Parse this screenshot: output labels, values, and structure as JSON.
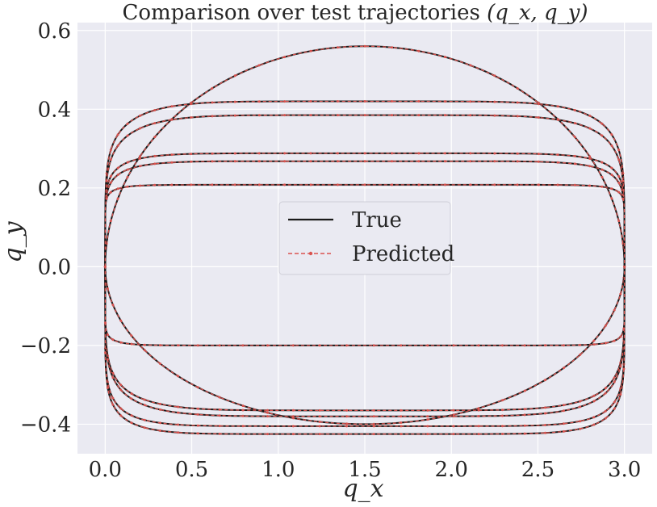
{
  "chart_data": {
    "type": "line",
    "title": "Comparison over test trajectories",
    "title_math": "(q_x, q_y)",
    "xlabel": "q_x",
    "ylabel": "q_y",
    "xlim": [
      -0.16,
      3.16
    ],
    "ylim": [
      -0.475,
      0.62
    ],
    "xticks": [
      "0.0",
      "0.5",
      "1.0",
      "1.5",
      "2.0",
      "2.5",
      "3.0"
    ],
    "xtick_values": [
      0,
      0.5,
      1.0,
      1.5,
      2.0,
      2.5,
      3.0
    ],
    "yticks": [
      "0.6",
      "0.4",
      "0.2",
      "0.0",
      "−0.2",
      "−0.4"
    ],
    "ytick_values": [
      0.6,
      0.4,
      0.2,
      0.0,
      -0.2,
      -0.4
    ],
    "grid": true,
    "background": "#eaeaf2",
    "legend_position": "center",
    "series": [
      {
        "name": "True",
        "color": "#1a1a1a",
        "style": "solid"
      },
      {
        "name": "Predicted",
        "color": "#d9534f",
        "style": "dashed-marker"
      }
    ],
    "trajectories": [
      {
        "q_max": 0.56,
        "q_min": -0.4,
        "shape_exponent": 2
      },
      {
        "q_max": 0.42,
        "q_min": -0.365,
        "shape_exponent": 6
      },
      {
        "q_max": 0.385,
        "q_min": -0.38,
        "shape_exponent": 6
      },
      {
        "q_max": 0.288,
        "q_min": -0.405,
        "shape_exponent": 8
      },
      {
        "q_max": 0.268,
        "q_min": -0.425,
        "shape_exponent": 8
      },
      {
        "q_max": 0.208,
        "q_min": -0.2,
        "shape_exponent": 14
      }
    ],
    "x_range": [
      0.0,
      3.0
    ]
  }
}
